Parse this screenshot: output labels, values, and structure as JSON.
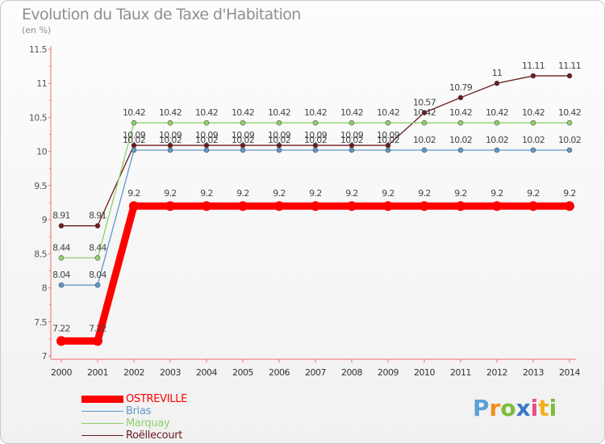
{
  "header": {
    "title": "Evolution du Taux de Taxe d'Habitation",
    "subtitle": "(en %)"
  },
  "chart_data": {
    "type": "line",
    "title": "Evolution du Taux de Taxe d'Habitation",
    "ylabel": "(en %)",
    "xlabel": "",
    "ylim": [
      7,
      11.5
    ],
    "yticks": [
      7,
      7.5,
      8,
      8.5,
      9,
      9.5,
      10,
      10.5,
      11,
      11.5
    ],
    "ytick_labels": [
      "7",
      "7.5",
      "8",
      "8.5",
      "9",
      "9.5",
      "10",
      "10.5",
      "11",
      "11.5"
    ],
    "x": [
      "2000",
      "2001",
      "2002",
      "2003",
      "2004",
      "2005",
      "2006",
      "2007",
      "2008",
      "2009",
      "2010",
      "2011",
      "2012",
      "2013",
      "2014"
    ],
    "grid": false,
    "legend_position": "bottom-left",
    "series": [
      {
        "name": "Roëllecourt",
        "color": "#6b1a1f",
        "values": [
          8.91,
          8.91,
          10.09,
          10.09,
          10.09,
          10.09,
          10.09,
          10.09,
          10.09,
          10.09,
          10.57,
          10.79,
          11,
          11.11,
          11.11
        ],
        "labels": [
          "8.91",
          "8.91",
          "10.09",
          "10.09",
          "10.09",
          "10.09",
          "10.09",
          "10.09",
          "10.09",
          "10.09",
          "10.57",
          "10.79",
          "11",
          "11.11",
          "11.11"
        ]
      },
      {
        "name": "Marquay",
        "color": "#8fd16a",
        "values": [
          8.44,
          8.44,
          10.42,
          10.42,
          10.42,
          10.42,
          10.42,
          10.42,
          10.42,
          10.42,
          10.42,
          10.42,
          10.42,
          10.42,
          10.42
        ],
        "labels": [
          "8.44",
          "8.44",
          "10.42",
          "10.42",
          "10.42",
          "10.42",
          "10.42",
          "10.42",
          "10.42",
          "10.42",
          "10.42",
          "10.42",
          "10.42",
          "10.42",
          "10.42"
        ]
      },
      {
        "name": "Brias",
        "color": "#5d98c9",
        "values": [
          8.04,
          8.04,
          10.02,
          10.02,
          10.02,
          10.02,
          10.02,
          10.02,
          10.02,
          10.02,
          10.02,
          10.02,
          10.02,
          10.02,
          10.02
        ],
        "labels": [
          "8.04",
          "8.04",
          "10.02",
          "10.02",
          "10.02",
          "10.02",
          "10.02",
          "10.02",
          "10.02",
          "10.02",
          "10.02",
          "10.02",
          "10.02",
          "10.02",
          "10.02"
        ]
      },
      {
        "name": "OSTREVILLE",
        "color": "#ff0000",
        "values": [
          7.22,
          7.22,
          9.2,
          9.2,
          9.2,
          9.2,
          9.2,
          9.2,
          9.2,
          9.2,
          9.2,
          9.2,
          9.2,
          9.2,
          9.2
        ],
        "labels": [
          "7.22",
          "7.22",
          "9.2",
          "9.2",
          "9.2",
          "9.2",
          "9.2",
          "9.2",
          "9.2",
          "9.2",
          "9.2",
          "9.2",
          "9.2",
          "9.2",
          "9.2"
        ]
      }
    ]
  },
  "legend": {
    "items": [
      {
        "label": "OSTREVILLE",
        "color": "#ff0000"
      },
      {
        "label": "Brias",
        "color": "#5d98c9"
      },
      {
        "label": "Marquay",
        "color": "#8fd16a"
      },
      {
        "label": "Roëllecourt",
        "color": "#6b1a1f"
      }
    ]
  },
  "logo": {
    "letters": [
      "P",
      "r",
      "o",
      "x",
      "i",
      "t",
      "i"
    ],
    "colors": [
      "#5aa1d8",
      "#f28e1c",
      "#7cbc3b",
      "#3b78c4",
      "#e94e8a",
      "#f2b21c",
      "#7cbc3b"
    ]
  }
}
